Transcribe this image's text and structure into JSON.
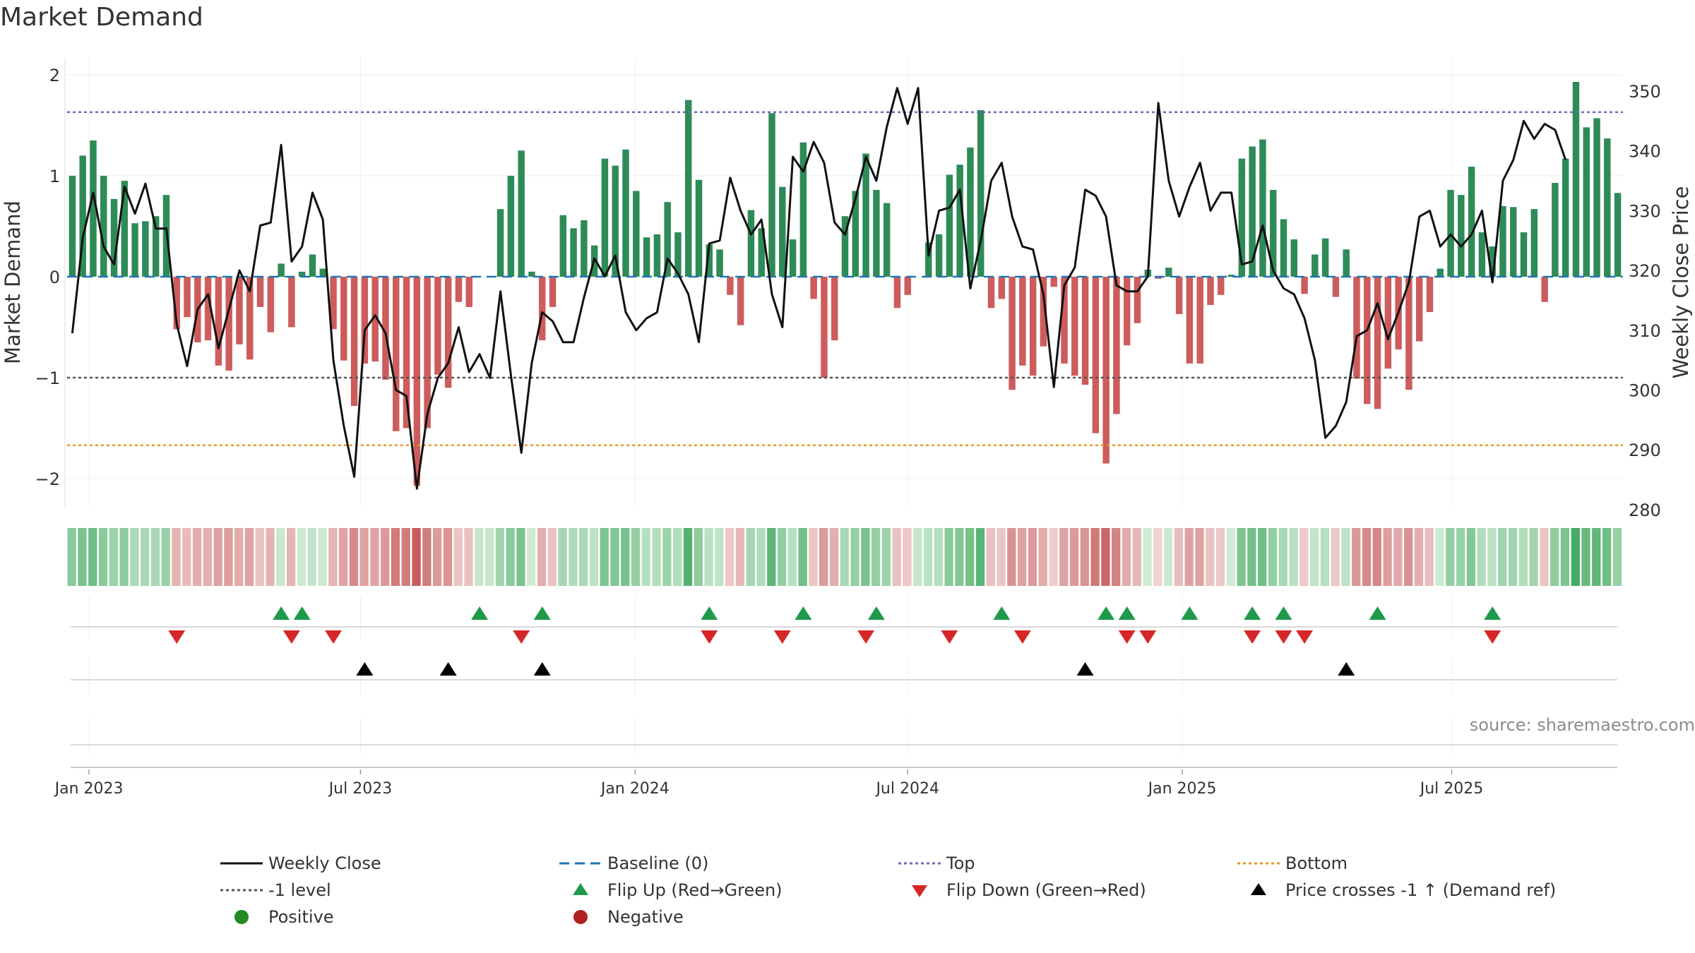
{
  "title": "Market Demand",
  "source": "source: sharemaestro.com",
  "colors": {
    "positive": "#2e8b57",
    "negative": "#cd5c5c",
    "price": "#111111",
    "baseline": "#1f77b4",
    "top": "#6b6bb6",
    "minus1": "#555555",
    "bottom": "#e69b1f",
    "flip_up": "#1e9a4a",
    "flip_down": "#d62728",
    "cross": "#000000",
    "pos_dot": "#228b22",
    "neg_dot": "#b22222"
  },
  "chart_data": {
    "type": "bar",
    "title": "Market Demand",
    "ylabel": "Market Demand",
    "y2label": "Weekly Close Price",
    "ylim": [
      -2.3,
      2.1
    ],
    "y2lim": [
      278.9,
      352.2
    ],
    "yticks": [
      "2",
      "1",
      "0",
      "−1",
      "−2"
    ],
    "yticks_values": [
      2,
      1,
      0,
      -1,
      -2
    ],
    "y2ticks": [
      "350",
      "340",
      "330",
      "320",
      "310",
      "300",
      "290",
      "280"
    ],
    "y2ticks_values": [
      350,
      340,
      330,
      320,
      310,
      300,
      290,
      280
    ],
    "xticks": [
      "Jan 2023",
      "Jul 2023",
      "Jan 2024",
      "Jul 2024",
      "Jan 2025",
      "Jul 2025"
    ],
    "xticks_week_index": [
      1.6,
      27.6,
      53.9,
      80,
      106.3,
      132.1
    ],
    "reference_lines": {
      "baseline": 0,
      "top": 1.63,
      "minus1": -1,
      "bottom": -1.67
    },
    "demand": [
      1.0,
      1.2,
      1.35,
      1.0,
      0.77,
      0.95,
      0.53,
      0.55,
      0.6,
      0.81,
      -0.52,
      -0.4,
      -0.65,
      -0.63,
      -0.88,
      -0.93,
      -0.67,
      -0.82,
      -0.3,
      -0.55,
      0.13,
      -0.5,
      0.05,
      0.22,
      0.08,
      -0.52,
      -0.83,
      -1.28,
      -0.86,
      -0.84,
      -1.02,
      -1.53,
      -1.5,
      -2.07,
      -1.5,
      -0.97,
      -1.1,
      -0.25,
      -0.3,
      0.0,
      0.0,
      0.67,
      1.0,
      1.25,
      0.05,
      -0.63,
      -0.3,
      0.61,
      0.48,
      0.56,
      0.31,
      1.17,
      1.1,
      1.26,
      0.85,
      0.39,
      0.42,
      0.74,
      0.44,
      1.75,
      0.96,
      0.32,
      0.27,
      -0.18,
      -0.48,
      0.66,
      0.48,
      1.62,
      0.89,
      0.37,
      1.33,
      -0.22,
      -1.0,
      -0.63,
      0.6,
      0.85,
      1.22,
      0.86,
      0.73,
      -0.31,
      -0.18,
      0.0,
      0.34,
      0.42,
      1.01,
      1.11,
      1.28,
      1.65,
      -0.31,
      -0.22,
      -1.12,
      -0.88,
      -0.98,
      -0.69,
      -0.1,
      -0.86,
      -0.98,
      -1.07,
      -1.55,
      -1.85,
      -1.36,
      -0.68,
      -0.46,
      0.07,
      -0.02,
      0.09,
      -0.37,
      -0.86,
      -0.86,
      -0.28,
      -0.18,
      0.02,
      1.17,
      1.29,
      1.36,
      0.86,
      0.57,
      0.37,
      -0.17,
      0.22,
      0.38,
      -0.2,
      0.27,
      -1.01,
      -1.26,
      -1.31,
      -0.91,
      -0.72,
      -1.12,
      -0.64,
      -0.35,
      0.08,
      0.86,
      0.81,
      1.09,
      0.44,
      0.3,
      0.7,
      0.69,
      0.44,
      0.67,
      -0.25,
      0.93,
      1.17,
      1.93,
      1.48,
      1.57,
      1.37,
      0.83
    ],
    "price": [
      309.5,
      325.5,
      333,
      324,
      321,
      334,
      329.5,
      334.5,
      327,
      327,
      311,
      304,
      313.5,
      316,
      307,
      313.5,
      320,
      316.5,
      327.5,
      328,
      341,
      321.5,
      324,
      333,
      328.5,
      305,
      294,
      285.5,
      310,
      312.5,
      309.5,
      300,
      299,
      283.5,
      296,
      302,
      304.5,
      310.5,
      303,
      306,
      302,
      316.5,
      302.5,
      289.5,
      304.5,
      313,
      311.5,
      308,
      308,
      315.5,
      322,
      319,
      322.5,
      313,
      310,
      312,
      313,
      322,
      319.5,
      316,
      308,
      324.5,
      325,
      335.5,
      330,
      326,
      328.5,
      316,
      310.5,
      339,
      336.5,
      341.5,
      338,
      328,
      326,
      332,
      339,
      335,
      344,
      350.5,
      344.5,
      350.5,
      322.5,
      330,
      330.5,
      333.5,
      317,
      325,
      335,
      338,
      329,
      324,
      323.5,
      316,
      300.5,
      317.5,
      320.5,
      333.5,
      332.5,
      329,
      317.5,
      316.5,
      316.5,
      319,
      348,
      335,
      329,
      334,
      338,
      330,
      333,
      333,
      321,
      321.5,
      327.5,
      320,
      317,
      316,
      312,
      305,
      292,
      294,
      298,
      309,
      310,
      314.5,
      308.5,
      313,
      318,
      329,
      330,
      324,
      326,
      324,
      326,
      330,
      318,
      335,
      338.5,
      345,
      342,
      344.5,
      343.5,
      338.5
    ]
  },
  "strip_label": "weekly demand color strip",
  "signals": {
    "flip_up_weeks": [
      20,
      22,
      39,
      45,
      61,
      70,
      77,
      89,
      99,
      101,
      107,
      113,
      116,
      125,
      136
    ],
    "flip_down_weeks": [
      10,
      21,
      25,
      43,
      61,
      68,
      76,
      84,
      91,
      101,
      103,
      113,
      116,
      118,
      136
    ],
    "cross_weeks": [
      28,
      36,
      45,
      97,
      122
    ]
  },
  "legend": [
    {
      "key": "weekly_close",
      "label": "Weekly Close",
      "symbol": "line"
    },
    {
      "key": "baseline",
      "label": "Baseline (0)",
      "symbol": "dash"
    },
    {
      "key": "top",
      "label": "Top",
      "symbol": "dot"
    },
    {
      "key": "bottom",
      "label": "Bottom",
      "symbol": "dot"
    },
    {
      "key": "minus1",
      "label": "-1 level",
      "symbol": "dot"
    },
    {
      "key": "flip_up",
      "label": "Flip Up (Red→Green)",
      "symbol": "tri-up"
    },
    {
      "key": "flip_down",
      "label": "Flip Down (Green→Red)",
      "symbol": "tri-down"
    },
    {
      "key": "cross",
      "label": "Price crosses -1 ↑ (Demand ref)",
      "symbol": "tri-up"
    },
    {
      "key": "positive",
      "label": "Positive",
      "symbol": "circle"
    },
    {
      "key": "negative",
      "label": "Negative",
      "symbol": "circle"
    }
  ]
}
